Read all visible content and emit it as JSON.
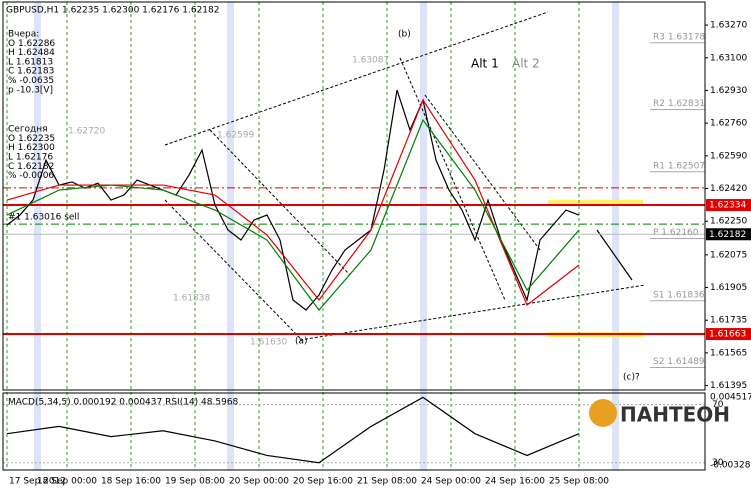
{
  "header": "GBPUSD,H1  1.62235 1.62300 1.62176 1.62182",
  "info": [
    "Вчера:",
    "O 1.62286",
    "H 1.62484",
    "L 1.61813",
    "C 1.62183",
    "% -0.0635",
    "p -10.3[V]",
    "Сегодня",
    "O 1.62235",
    "H 1.62300",
    "L 1.62176",
    "C 1.62182",
    "% -0.0006"
  ],
  "annotations": [
    "(b)",
    "(a)",
    "(c)?",
    "Alt 1",
    "Alt 2",
    "1.63087",
    "1.62720",
    "1.62599",
    "1.61838",
    "1.61630",
    "#1 1.63016 sell"
  ],
  "logo": "ПАНТЕОН",
  "chart_data": {
    "type": "line",
    "xlim": [
      -1,
      174.5
    ],
    "ylim": [
      1.61372,
      1.6339
    ],
    "xticks": [
      {
        "value": 0,
        "label": "17 Sep 2012"
      },
      {
        "value": 15,
        "label": "18 Sep 00:00"
      },
      {
        "value": 31,
        "label": "18 Sep 16:00"
      },
      {
        "value": 47,
        "label": "19 Sep 08:00"
      },
      {
        "value": 63,
        "label": "20 Sep 00:00"
      },
      {
        "value": 79,
        "label": "20 Sep 16:00"
      },
      {
        "value": 95,
        "label": "21 Sep 08:00"
      },
      {
        "value": 111,
        "label": "24 Sep 00:00"
      },
      {
        "value": 127,
        "label": "24 Sep 16:00"
      },
      {
        "value": 143,
        "label": "25 Sep 08:00"
      }
    ],
    "yticks": [
      {
        "value": 1.6327,
        "label": "1.63270"
      },
      {
        "value": 1.631,
        "label": "1.63100"
      },
      {
        "value": 1.6293,
        "label": "1.62930"
      },
      {
        "value": 1.6276,
        "label": "1.62760"
      },
      {
        "value": 1.6259,
        "label": "1.62590"
      },
      {
        "value": 1.6242,
        "label": "1.62420"
      },
      {
        "value": 1.6225,
        "label": "1.62250"
      },
      1.62075,
      1.61905,
      1.61735,
      1.61565,
      1.61395
    ],
    "series": [
      {
        "color": "#000000",
        "x": [
          0,
          3.25,
          6.5,
          9.75,
          13,
          16.25,
          19.5,
          22.75,
          26,
          29.25,
          32.5,
          35.75,
          39,
          42.25,
          45.5,
          48.75,
          52,
          55.25,
          58.5,
          61.75,
          65,
          68.25,
          71.5,
          74.75,
          78,
          81.25,
          84.5,
          87.75,
          91,
          94.25,
          97.5,
          100.75,
          104,
          107.25,
          110.5,
          113.75,
          117,
          120.25,
          123.5,
          126.75,
          130,
          133.25,
          136.5,
          139.75,
          143
        ],
        "values": [
          1.6223,
          1.62282,
          1.6236,
          1.62568,
          1.62438,
          1.62454,
          1.62422,
          1.62448,
          1.6236,
          1.62386,
          1.62464,
          1.62438,
          1.62412,
          1.62386,
          1.6249,
          1.6262,
          1.62334,
          1.62204,
          1.62152,
          1.62256,
          1.62282,
          1.62152,
          1.6184,
          1.61788,
          1.61866,
          1.61996,
          1.621,
          1.62152,
          1.62204,
          1.62516,
          1.62932,
          1.62724,
          1.6288,
          1.62568,
          1.62412,
          1.62308,
          1.62152,
          1.6236,
          1.62152,
          1.61996,
          1.6184,
          1.62152,
          1.6223,
          1.62308,
          1.62282
        ]
      },
      {
        "color": "#e00000",
        "x": [
          0,
          13,
          26,
          39,
          52,
          65,
          78,
          91,
          104,
          117,
          130,
          143
        ],
        "values": [
          1.6236,
          1.62438,
          1.62438,
          1.62438,
          1.62386,
          1.62178,
          1.6184,
          1.62204,
          1.6288,
          1.62464,
          1.61814,
          1.62022
        ]
      },
      {
        "color": "#008000",
        "x": [
          0,
          13,
          26,
          39,
          52,
          65,
          78,
          91,
          104,
          117,
          130,
          143
        ],
        "values": [
          1.62282,
          1.62412,
          1.62438,
          1.62412,
          1.62308,
          1.62152,
          1.61788,
          1.621,
          1.62776,
          1.62412,
          1.61892,
          1.62204
        ]
      }
    ],
    "levels": [
      {
        "value": 1.62334,
        "label": "1.62334",
        "color": "#e00000",
        "style": "tag"
      },
      {
        "value": 1.62182,
        "label": "1.62182",
        "color": "#000000",
        "style": "tag"
      },
      {
        "value": 1.61663,
        "label": "1.61663",
        "color": "#e00000",
        "style": "tag"
      },
      {
        "value": 1.62423,
        "color": "#e00000",
        "style": "dashdot"
      },
      {
        "value": 1.62235,
        "color": "#008000",
        "style": "dashdot"
      },
      {
        "value": 1.63178,
        "label": "R3 1.63178",
        "color": "#aaaaaa",
        "style": "pivot"
      },
      {
        "value": 1.62831,
        "label": "R2 1.62831",
        "color": "#aaaaaa",
        "style": "pivot"
      },
      {
        "value": 1.62507,
        "label": "R1 1.62507",
        "color": "#aaaaaa",
        "style": "pivot"
      },
      {
        "value": 1.6216,
        "label": "P 1.62160",
        "color": "#aaaaaa",
        "style": "pivot"
      },
      {
        "value": 1.61836,
        "label": "S1 1.61836",
        "color": "#aaaaaa",
        "style": "pivot"
      },
      {
        "value": 1.61489,
        "label": "S2 1.61489",
        "color": "#aaaaaa",
        "style": "pivot"
      }
    ],
    "indicator": {
      "label": "MACD(5,34,5) 0.000192 0.000437  RSI(14) 48.5968",
      "ylim": [
        25,
        78
      ],
      "yticks": [
        70,
        30
      ],
      "top_label": "0.004517",
      "bottom_label": "-0.00328",
      "series": [
        {
          "color": "#000000",
          "x": [
            0,
            13,
            26,
            39,
            52,
            65,
            78,
            91,
            104,
            117,
            130,
            143
          ],
          "values": [
            50,
            55,
            48,
            52,
            45,
            35,
            30,
            55,
            75,
            50,
            35,
            50
          ]
        }
      ]
    }
  }
}
